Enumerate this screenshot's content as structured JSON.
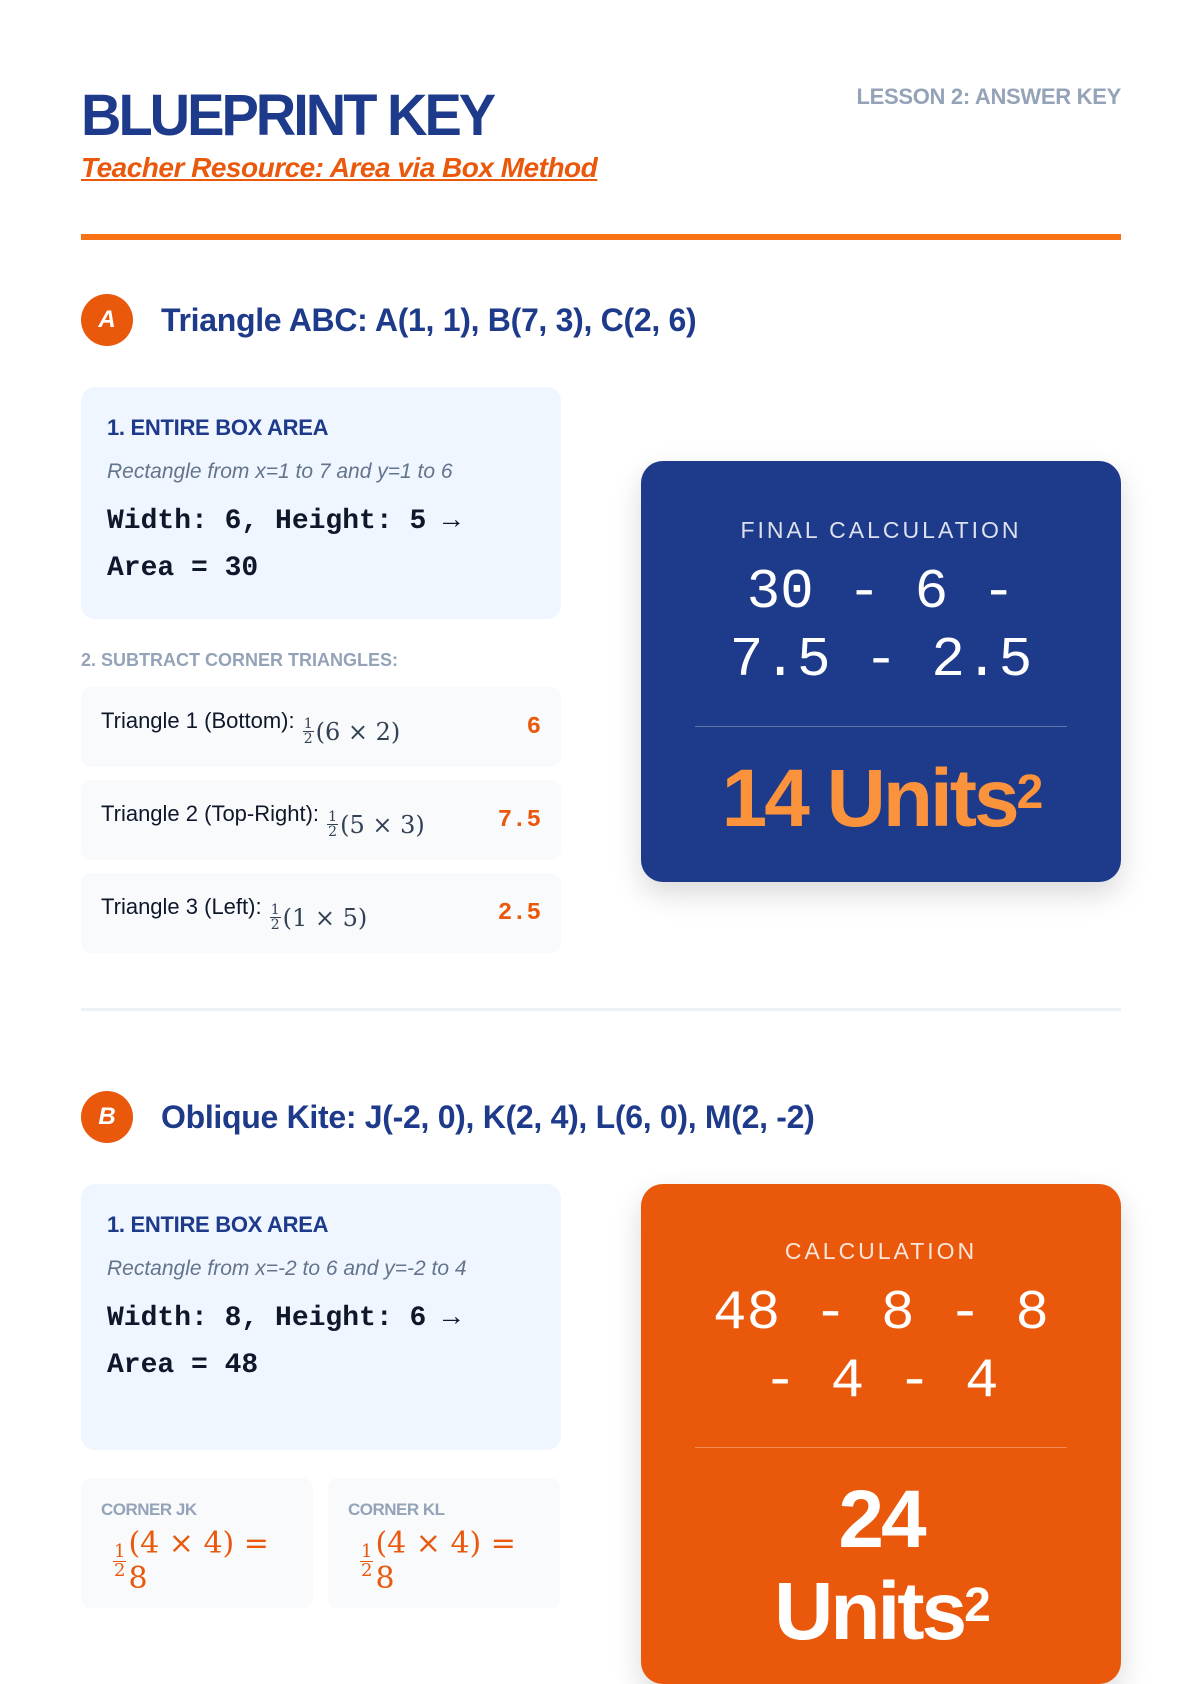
{
  "header": {
    "title": "BLUEPRINT KEY",
    "subtitle": "Teacher Resource: Area via Box Method",
    "lesson": "LESSON 2: ANSWER KEY"
  },
  "colors": {
    "navy": "#1e3a8a",
    "orange": "#ea580c",
    "accent_orange": "#f97316",
    "result_orange": "#fb923c"
  },
  "sectionA": {
    "badge": "A",
    "title": "Triangle ABC: A(1, 1), B(7, 3), C(2, 6)",
    "box": {
      "heading": "1. ENTIRE BOX AREA",
      "note": "Rectangle from x=1 to 7 and y=1 to 6",
      "calc1": "Width: 6, Height: 5 →",
      "calc2": "Area = 30"
    },
    "subtract_label": "2. SUBTRACT CORNER TRIANGLES:",
    "rows": [
      {
        "label": "Triangle 1 (Bottom):",
        "num": "1",
        "den": "2",
        "expr": "(6 × 2)",
        "value": "6"
      },
      {
        "label": "Triangle 2 (Top-Right):",
        "num": "1",
        "den": "2",
        "expr": "(5 × 3)",
        "value": "7.5"
      },
      {
        "label": "Triangle 3 (Left):",
        "num": "1",
        "den": "2",
        "expr": "(1 × 5)",
        "value": "2.5"
      }
    ],
    "card": {
      "caption": "FINAL CALCULATION",
      "expr": "30 - 6 - 7.5 - 2.5",
      "result": "14 Units",
      "exp": "2"
    }
  },
  "sectionB": {
    "badge": "B",
    "title": "Oblique Kite: J(-2, 0), K(2, 4), L(6, 0), M(2, -2)",
    "box": {
      "heading": "1. ENTIRE BOX AREA",
      "note": "Rectangle from x=-2 to 6 and y=-2 to 4",
      "calc1": "Width: 8, Height: 6 →",
      "calc2": "Area = 48"
    },
    "corners": [
      {
        "label": "CORNER JK",
        "num": "1",
        "den": "2",
        "expr": "(4 × 4) = 8"
      },
      {
        "label": "CORNER KL",
        "num": "1",
        "den": "2",
        "expr": "(4 × 4) = 8"
      }
    ],
    "card": {
      "caption": "CALCULATION",
      "expr": "48 - 8 - 8 - 4 - 4",
      "result": "24 Units",
      "exp": "2"
    }
  }
}
